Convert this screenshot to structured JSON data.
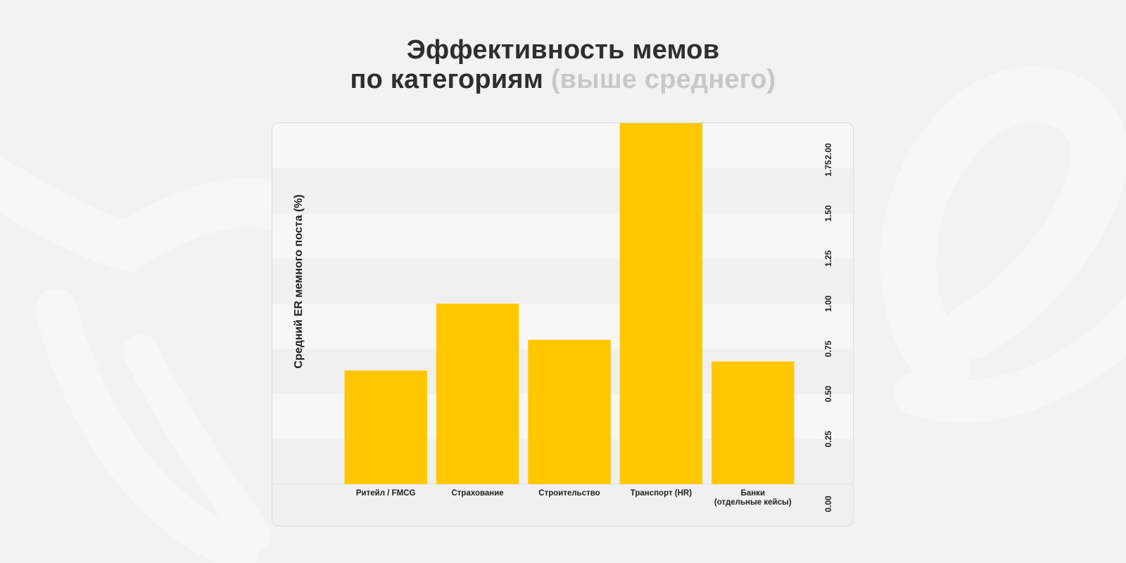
{
  "title": {
    "line1": "Эффективность мемов",
    "line2_main": "по категориям",
    "line2_muted": "(выше среднего)"
  },
  "colors": {
    "background": "#f2f2f2",
    "bar": "#ffc700",
    "band_light": "#f7f7f7",
    "band_dark": "#f0f0f0",
    "title": "#2e2e2e",
    "title_muted": "#c8c8c8"
  },
  "chart_data": {
    "type": "bar",
    "categories": [
      "Ритейл / FMCG",
      "Страхование",
      "Строительство",
      "Транспорт (HR)",
      "Банки\n(отдельные кейсы)"
    ],
    "values": [
      0.63,
      1.0,
      0.8,
      2.0,
      0.68
    ],
    "ylabel": "Средний ER мемного поста (%)",
    "ylim": [
      0,
      2.0
    ],
    "yticks": [
      "0.00",
      "0.25",
      "0.50",
      "0.75",
      "1.00",
      "1.25",
      "1.50",
      "1.75",
      "2.00"
    ],
    "grid": "alternating horizontal bands",
    "y_axis_position": "right"
  }
}
